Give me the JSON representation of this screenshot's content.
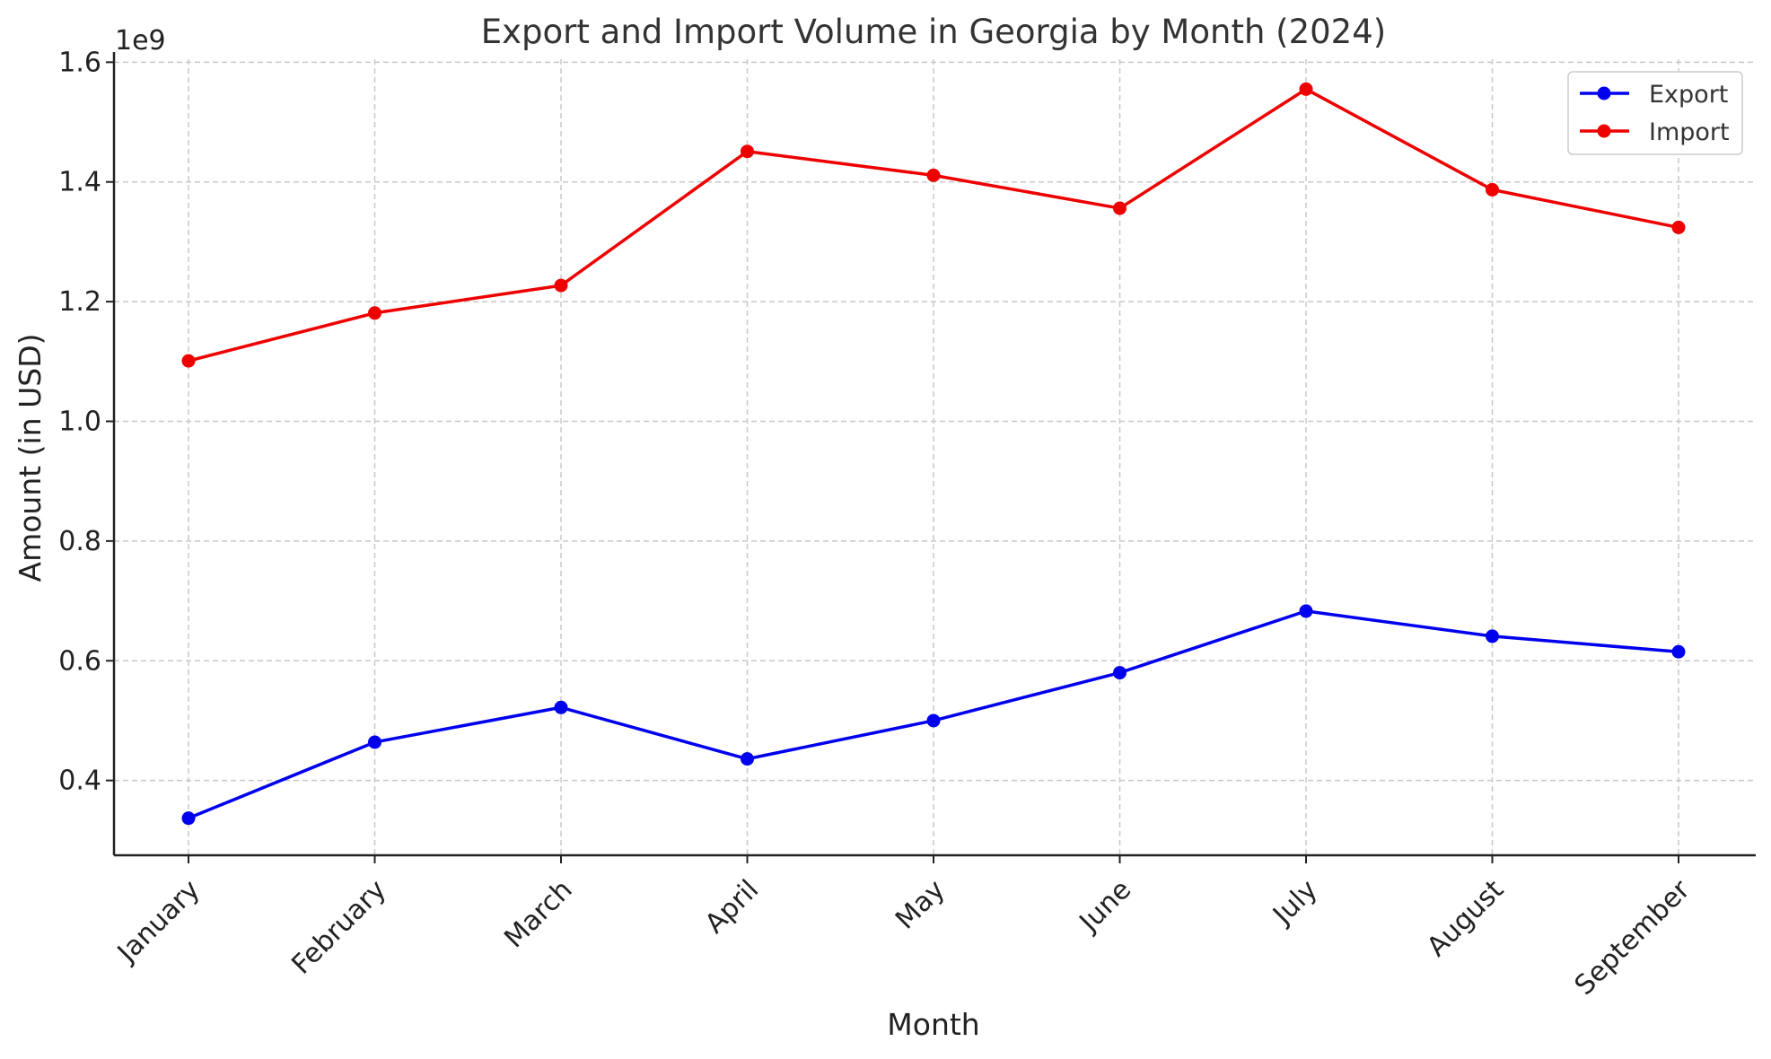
{
  "chart_data": {
    "type": "line",
    "title": "Export and Import Volume in Georgia by Month (2024)",
    "xlabel": "Month",
    "ylabel": "Amount (in USD)",
    "y_offset_text": "1e9",
    "categories": [
      "January",
      "February",
      "March",
      "April",
      "May",
      "June",
      "July",
      "August",
      "September"
    ],
    "y_scale": 1000000000,
    "ylim": [
      0.275,
      1.605
    ],
    "yticks": [
      0.4,
      0.6,
      0.8,
      1.0,
      1.2,
      1.4,
      1.6
    ],
    "ytick_labels": [
      "0.4",
      "0.6",
      "0.8",
      "1.0",
      "1.2",
      "1.4",
      "1.6"
    ],
    "grid": true,
    "legend_position": "top-right",
    "series": [
      {
        "name": "Export",
        "color": "#0000ee",
        "values": [
          337000000,
          464000000,
          522000000,
          436000000,
          500000000,
          580000000,
          683000000,
          641000000,
          615000000
        ]
      },
      {
        "name": "Import",
        "color": "#ee0000",
        "values": [
          1101000000,
          1181000000,
          1227000000,
          1451000000,
          1411000000,
          1356000000,
          1555000000,
          1387000000,
          1324000000
        ]
      }
    ]
  }
}
